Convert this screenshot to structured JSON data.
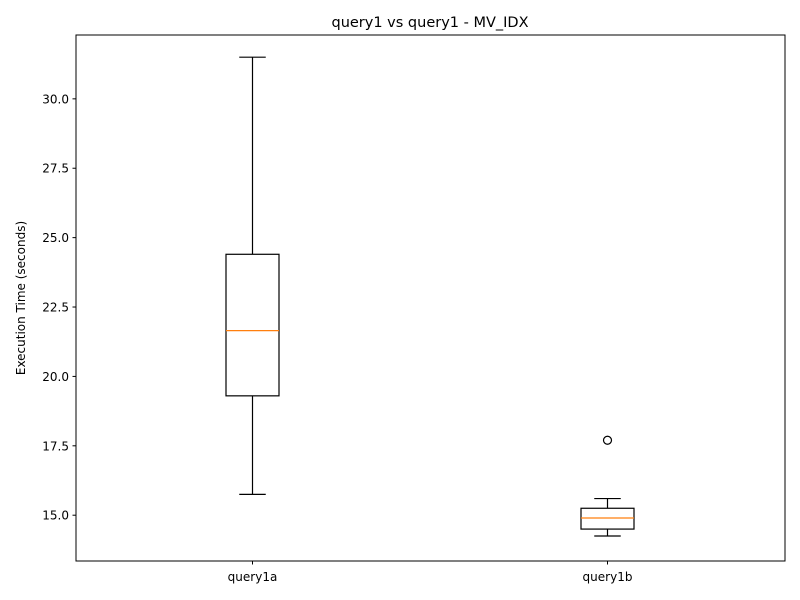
{
  "chart_data": {
    "type": "box",
    "title": "query1 vs query1 - MV_IDX",
    "xlabel": "",
    "ylabel": "Execution Time (seconds)",
    "ylim": [
      13.35,
      32.3
    ],
    "yticks": [
      15.0,
      17.5,
      20.0,
      22.5,
      25.0,
      27.5,
      30.0
    ],
    "ytick_labels": [
      "15.0",
      "17.5",
      "20.0",
      "22.5",
      "25.0",
      "27.5",
      "30.0"
    ],
    "categories": [
      "query1a",
      "query1b"
    ],
    "boxes": [
      {
        "label": "query1a",
        "whisker_low": 15.75,
        "q1": 19.3,
        "median": 21.65,
        "q3": 24.4,
        "whisker_high": 31.5,
        "outliers": []
      },
      {
        "label": "query1b",
        "whisker_low": 14.25,
        "q1": 14.5,
        "median": 14.9,
        "q3": 15.25,
        "whisker_high": 15.6,
        "outliers": [
          17.7
        ]
      }
    ],
    "colors": {
      "box": "#000000",
      "median": "#ff7f0e"
    },
    "grid": false,
    "legend": "none"
  }
}
